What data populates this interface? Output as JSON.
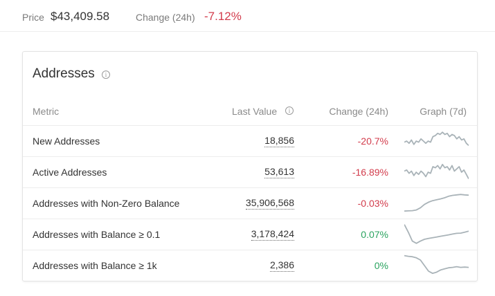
{
  "header": {
    "price_label": "Price",
    "price_value": "$43,409.58",
    "change_label": "Change (24h)",
    "change_value": "-7.12%"
  },
  "card": {
    "title": "Addresses",
    "columns": {
      "metric": "Metric",
      "last_value": "Last Value",
      "change": "Change (24h)",
      "graph": "Graph (7d)"
    },
    "rows": [
      {
        "metric": "New Addresses",
        "last_value": "18,856",
        "change": "-20.7%",
        "trend": "down",
        "spark": [
          0.45,
          0.5,
          0.4,
          0.55,
          0.35,
          0.5,
          0.45,
          0.6,
          0.5,
          0.4,
          0.5,
          0.45,
          0.7,
          0.75,
          0.85,
          0.8,
          0.9,
          0.8,
          0.85,
          0.7,
          0.8,
          0.75,
          0.6,
          0.7,
          0.55,
          0.6,
          0.4,
          0.3
        ]
      },
      {
        "metric": "Active Addresses",
        "last_value": "53,613",
        "change": "-16.89%",
        "trend": "down",
        "spark": [
          0.55,
          0.6,
          0.45,
          0.55,
          0.35,
          0.5,
          0.4,
          0.55,
          0.45,
          0.3,
          0.5,
          0.45,
          0.75,
          0.7,
          0.8,
          0.65,
          0.85,
          0.7,
          0.75,
          0.6,
          0.8,
          0.55,
          0.65,
          0.75,
          0.5,
          0.6,
          0.4,
          0.2
        ]
      },
      {
        "metric": "Addresses with Non-Zero Balance",
        "last_value": "35,906,568",
        "change": "-0.03%",
        "trend": "down",
        "spark": [
          0.15,
          0.16,
          0.17,
          0.2,
          0.3,
          0.45,
          0.55,
          0.62,
          0.66,
          0.7,
          0.75,
          0.82,
          0.86,
          0.88,
          0.9,
          0.88,
          0.87
        ]
      },
      {
        "metric": "Addresses with Balance ≥ 0.1",
        "last_value": "3,178,424",
        "change": "0.07%",
        "trend": "up",
        "spark": [
          0.95,
          0.6,
          0.2,
          0.1,
          0.2,
          0.28,
          0.32,
          0.35,
          0.38,
          0.42,
          0.45,
          0.48,
          0.52,
          0.55,
          0.56,
          0.6,
          0.65
        ]
      },
      {
        "metric": "Addresses with Balance ≥ 1k",
        "last_value": "2,386",
        "change": "0%",
        "trend": "up",
        "spark": [
          0.95,
          0.92,
          0.9,
          0.85,
          0.75,
          0.5,
          0.25,
          0.15,
          0.2,
          0.3,
          0.35,
          0.4,
          0.42,
          0.45,
          0.42,
          0.43,
          0.42
        ]
      }
    ]
  },
  "colors": {
    "negative": "#d23b4b",
    "positive": "#2aa35f",
    "sparkline": "#a9b3b8"
  }
}
